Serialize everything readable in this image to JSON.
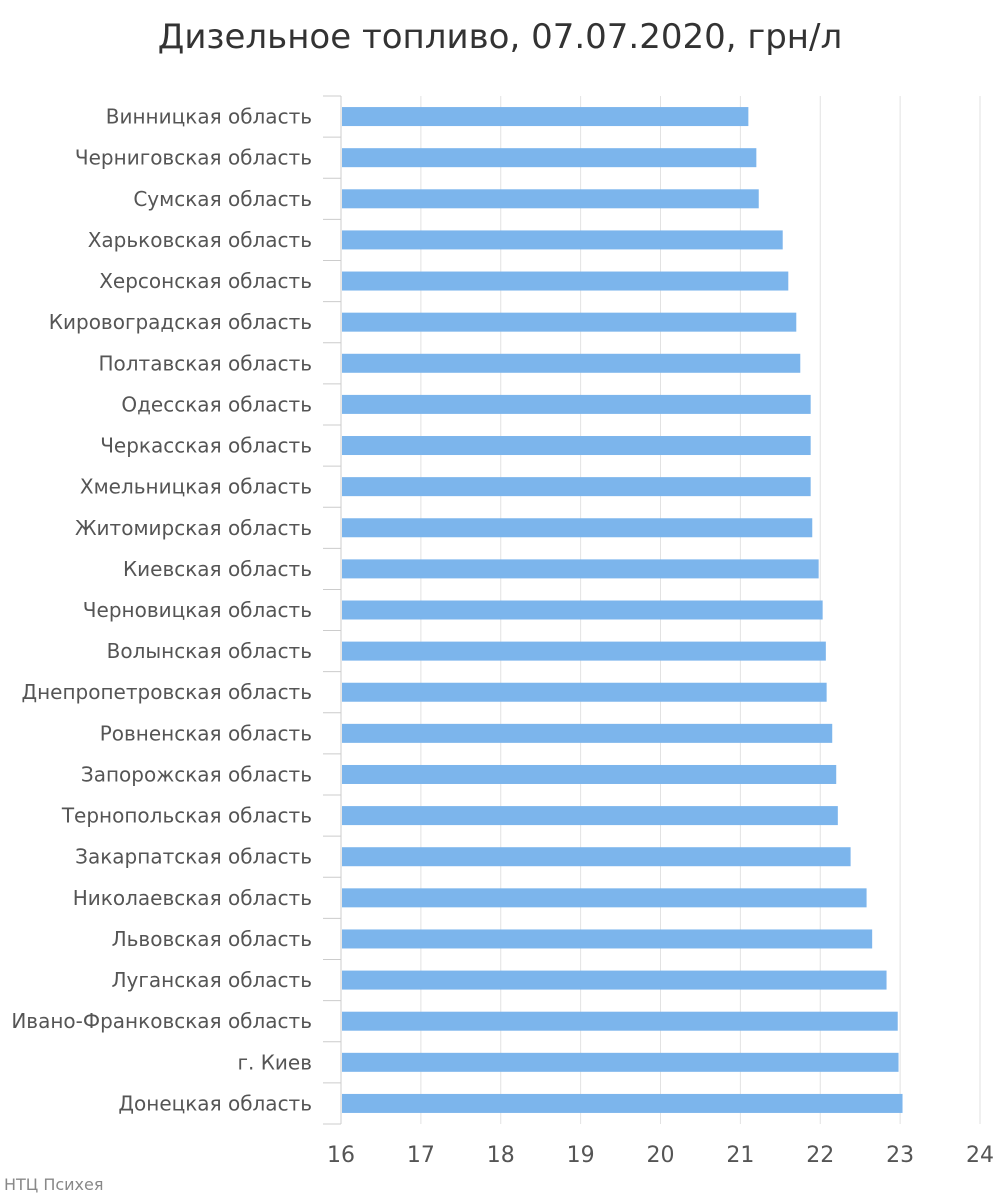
{
  "chart_data": {
    "type": "bar",
    "orientation": "horizontal",
    "title": "Дизельное топливо, 07.07.2020, грн/л",
    "xlim": [
      16,
      24
    ],
    "xticks": [
      16,
      17,
      18,
      19,
      20,
      21,
      22,
      23,
      24
    ],
    "grid": true,
    "bar_color": "#7cb5ec",
    "categories": [
      "Винницкая область",
      "Черниговская область",
      "Сумская область",
      "Харьковская область",
      "Херсонская область",
      "Кировоградская область",
      "Полтавская область",
      "Одесская область",
      "Черкасская область",
      "Хмельницкая область",
      "Житомирская область",
      "Киевская область",
      "Черновицкая область",
      "Волынская область",
      "Днепропетровская область",
      "Ровненская область",
      "Запорожская область",
      "Тернопольская область",
      "Закарпатская область",
      "Николаевская область",
      "Львовская область",
      "Луганская область",
      "Ивано-Франковская область",
      "г. Киев",
      "Донецкая область"
    ],
    "values": [
      21.1,
      21.2,
      21.23,
      21.53,
      21.6,
      21.7,
      21.75,
      21.88,
      21.88,
      21.88,
      21.9,
      21.98,
      22.03,
      22.07,
      22.08,
      22.15,
      22.2,
      22.22,
      22.38,
      22.58,
      22.65,
      22.83,
      22.97,
      22.98,
      23.03
    ]
  },
  "credit": "НТЦ Психея"
}
